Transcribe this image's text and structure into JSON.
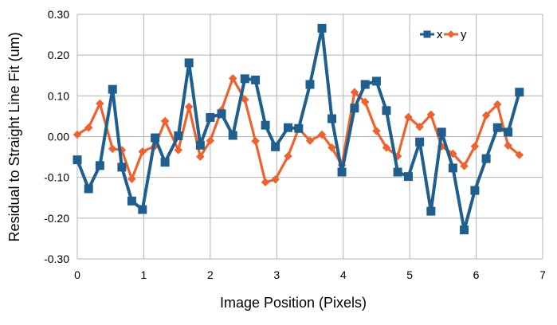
{
  "chart_data": {
    "type": "line",
    "xlabel": "Image Position (Pixels)",
    "ylabel": "Residual to Straight Line Fit (um)",
    "xlim": [
      0,
      7
    ],
    "ylim": [
      -0.3,
      0.3
    ],
    "x_ticks": [
      0,
      1,
      2,
      3,
      4,
      5,
      6,
      7
    ],
    "y_ticks": [
      -0.3,
      -0.2,
      -0.1,
      0.0,
      0.1,
      0.2,
      0.3
    ],
    "x_tick_labels": [
      "0",
      "1",
      "2",
      "3",
      "4",
      "5",
      "6",
      "7"
    ],
    "y_tick_labels": [
      "-0.30",
      "-0.20",
      "-0.10",
      "0.00",
      "0.10",
      "0.20",
      "0.30"
    ],
    "grid": "horizontal and vertical",
    "legend_position": "top-right",
    "series": [
      {
        "name": "x",
        "color": "#1f5f8f",
        "marker": "square",
        "x": [
          0.0,
          0.17,
          0.34,
          0.53,
          0.67,
          0.82,
          0.98,
          1.17,
          1.32,
          1.52,
          1.68,
          1.85,
          2.0,
          2.17,
          2.34,
          2.52,
          2.68,
          2.83,
          2.98,
          3.17,
          3.33,
          3.5,
          3.68,
          3.83,
          3.98,
          4.17,
          4.33,
          4.5,
          4.65,
          4.82,
          4.98,
          5.15,
          5.32,
          5.48,
          5.65,
          5.82,
          5.98,
          6.15,
          6.32,
          6.48,
          6.65
        ],
        "y": [
          -0.057,
          -0.128,
          -0.071,
          0.116,
          -0.075,
          -0.158,
          -0.179,
          -0.003,
          -0.063,
          0.002,
          0.181,
          -0.021,
          0.047,
          0.056,
          0.003,
          0.142,
          0.139,
          0.028,
          -0.025,
          0.022,
          0.02,
          0.128,
          0.266,
          0.044,
          -0.087,
          0.07,
          0.128,
          0.136,
          0.064,
          -0.087,
          -0.098,
          -0.013,
          -0.183,
          0.011,
          -0.077,
          -0.229,
          -0.132,
          -0.054,
          0.022,
          0.011,
          0.109
        ]
      },
      {
        "name": "y",
        "color": "#f0622d",
        "marker": "diamond",
        "x": [
          0.0,
          0.17,
          0.34,
          0.53,
          0.67,
          0.82,
          0.98,
          1.17,
          1.32,
          1.52,
          1.68,
          1.85,
          2.0,
          2.17,
          2.34,
          2.52,
          2.68,
          2.83,
          2.98,
          3.17,
          3.33,
          3.5,
          3.68,
          3.83,
          3.98,
          4.17,
          4.33,
          4.5,
          4.65,
          4.82,
          4.98,
          5.15,
          5.32,
          5.48,
          5.65,
          5.82,
          5.98,
          6.15,
          6.32,
          6.48,
          6.65
        ],
        "y": [
          0.005,
          0.022,
          0.081,
          -0.03,
          -0.033,
          -0.104,
          -0.037,
          -0.023,
          0.038,
          -0.033,
          0.073,
          -0.049,
          -0.01,
          0.065,
          0.143,
          0.091,
          -0.011,
          -0.112,
          -0.105,
          -0.048,
          0.02,
          -0.01,
          0.005,
          -0.027,
          -0.07,
          0.109,
          0.085,
          0.014,
          -0.027,
          -0.048,
          0.048,
          0.024,
          0.054,
          -0.024,
          -0.042,
          -0.072,
          -0.024,
          0.052,
          0.079,
          -0.022,
          -0.045
        ]
      }
    ]
  }
}
